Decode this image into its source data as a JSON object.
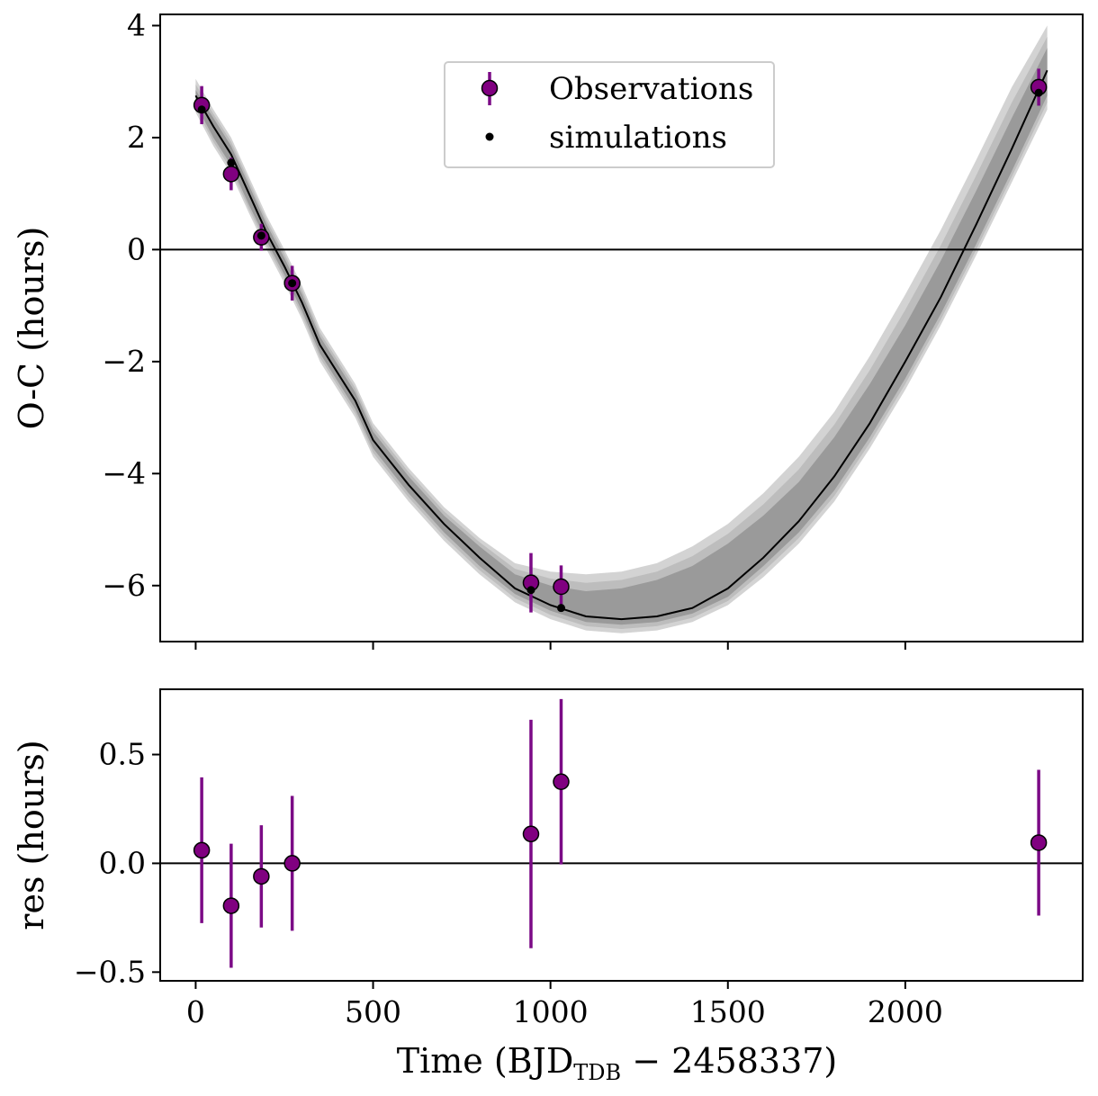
{
  "colors": {
    "observation_fill": "#800080",
    "errorbar": "#7b0a86",
    "simulation": "#000000",
    "band_outer": "#d3d3d3",
    "band_mid": "#bdbdbd",
    "band_inner": "#9a9a9a",
    "model_line": "#000000"
  },
  "chart_data": [
    {
      "type": "scatter",
      "title": "",
      "xlabel": "",
      "ylabel": "O-C (hours)",
      "xlim": [
        -100,
        2500
      ],
      "ylim": [
        -7.0,
        4.2
      ],
      "yticks": [
        4,
        2,
        0,
        -2,
        -4,
        -6
      ],
      "ytick_labels": [
        "4",
        "2",
        "0",
        "−2",
        "−4",
        "−6"
      ],
      "xticks": [
        0,
        500,
        1000,
        1500,
        2000
      ],
      "show_xtick_labels": false,
      "grid": false,
      "legend_placement": "top-center",
      "legend": [
        {
          "label": "Observations",
          "marker": "circle-errorbar"
        },
        {
          "label": "simulations",
          "marker": "dot"
        }
      ],
      "reference_line_y": 0,
      "series": [
        {
          "name": "Observations",
          "x": [
            17,
            100,
            185,
            272,
            945,
            1030,
            2376
          ],
          "y": [
            2.58,
            1.35,
            0.22,
            -0.6,
            -5.95,
            -6.02,
            2.9
          ],
          "yerr": [
            0.34,
            0.29,
            0.24,
            0.31,
            0.53,
            0.38,
            0.33
          ]
        },
        {
          "name": "simulations",
          "x": [
            17,
            100,
            185,
            272,
            945,
            1030,
            2376
          ],
          "y": [
            2.5,
            1.55,
            0.25,
            -0.6,
            -6.08,
            -6.4,
            2.8
          ]
        }
      ],
      "model_band": {
        "x": [
          0,
          50,
          100,
          150,
          200,
          250,
          300,
          350,
          400,
          450,
          500,
          600,
          700,
          800,
          900,
          1000,
          1100,
          1200,
          1300,
          1400,
          1500,
          1600,
          1700,
          1800,
          1900,
          2000,
          2100,
          2200,
          2300,
          2400
        ],
        "median": [
          2.75,
          2.2,
          1.7,
          1.0,
          0.3,
          -0.3,
          -0.95,
          -1.7,
          -2.2,
          -2.7,
          -3.4,
          -4.2,
          -4.9,
          -5.5,
          -6.05,
          -6.35,
          -6.55,
          -6.6,
          -6.55,
          -6.4,
          -6.05,
          -5.5,
          -4.85,
          -4.05,
          -3.1,
          -2.0,
          -0.85,
          0.45,
          1.8,
          3.2
        ],
        "inner_lower": [
          2.6,
          2.0,
          1.5,
          0.8,
          0.15,
          -0.45,
          -1.1,
          -1.85,
          -2.35,
          -2.85,
          -3.55,
          -4.35,
          -5.05,
          -5.65,
          -6.15,
          -6.45,
          -6.65,
          -6.7,
          -6.65,
          -6.5,
          -6.2,
          -5.65,
          -5.05,
          -4.3,
          -3.35,
          -2.3,
          -1.15,
          0.1,
          1.4,
          2.75
        ],
        "inner_upper": [
          2.85,
          2.35,
          1.85,
          1.15,
          0.45,
          -0.15,
          -0.8,
          -1.55,
          -2.05,
          -2.55,
          -3.25,
          -4.05,
          -4.75,
          -5.3,
          -5.8,
          -6.0,
          -6.1,
          -6.05,
          -5.9,
          -5.65,
          -5.25,
          -4.75,
          -4.15,
          -3.35,
          -2.4,
          -1.35,
          -0.2,
          1.05,
          2.35,
          3.6
        ],
        "outer_lower": [
          2.45,
          1.85,
          1.35,
          0.65,
          0.0,
          -0.6,
          -1.25,
          -2.0,
          -2.5,
          -3.0,
          -3.7,
          -4.5,
          -5.2,
          -5.8,
          -6.3,
          -6.6,
          -6.8,
          -6.85,
          -6.8,
          -6.65,
          -6.35,
          -5.85,
          -5.25,
          -4.5,
          -3.55,
          -2.5,
          -1.35,
          -0.1,
          1.2,
          2.5
        ],
        "outer_upper": [
          3.05,
          2.5,
          2.0,
          1.3,
          0.6,
          0.0,
          -0.65,
          -1.4,
          -1.9,
          -2.4,
          -3.1,
          -3.9,
          -4.6,
          -5.15,
          -5.6,
          -5.75,
          -5.8,
          -5.75,
          -5.6,
          -5.3,
          -4.9,
          -4.35,
          -3.7,
          -2.9,
          -1.9,
          -0.8,
          0.35,
          1.6,
          2.9,
          4.0
        ]
      }
    },
    {
      "type": "scatter",
      "title": "",
      "xlabel": "Time (BJD",
      "xlabel_subscript": "TDB",
      "xlabel_suffix": " − 2458337)",
      "ylabel": "res (hours)",
      "xlim": [
        -100,
        2500
      ],
      "ylim": [
        -0.54,
        0.8
      ],
      "yticks": [
        0.5,
        0.0,
        -0.5
      ],
      "ytick_labels": [
        "0.5",
        "0.0",
        "−0.5"
      ],
      "xticks": [
        0,
        500,
        1000,
        1500,
        2000
      ],
      "xtick_labels": [
        "0",
        "500",
        "1000",
        "1500",
        "2000"
      ],
      "grid": false,
      "reference_line_y": 0,
      "series": [
        {
          "name": "Observations",
          "x": [
            17,
            100,
            185,
            272,
            945,
            1030,
            2376
          ],
          "y": [
            0.06,
            -0.195,
            -0.06,
            0.0,
            0.135,
            0.375,
            0.095
          ],
          "yerr": [
            0.335,
            0.285,
            0.235,
            0.31,
            0.525,
            0.38,
            0.335
          ]
        }
      ]
    }
  ]
}
